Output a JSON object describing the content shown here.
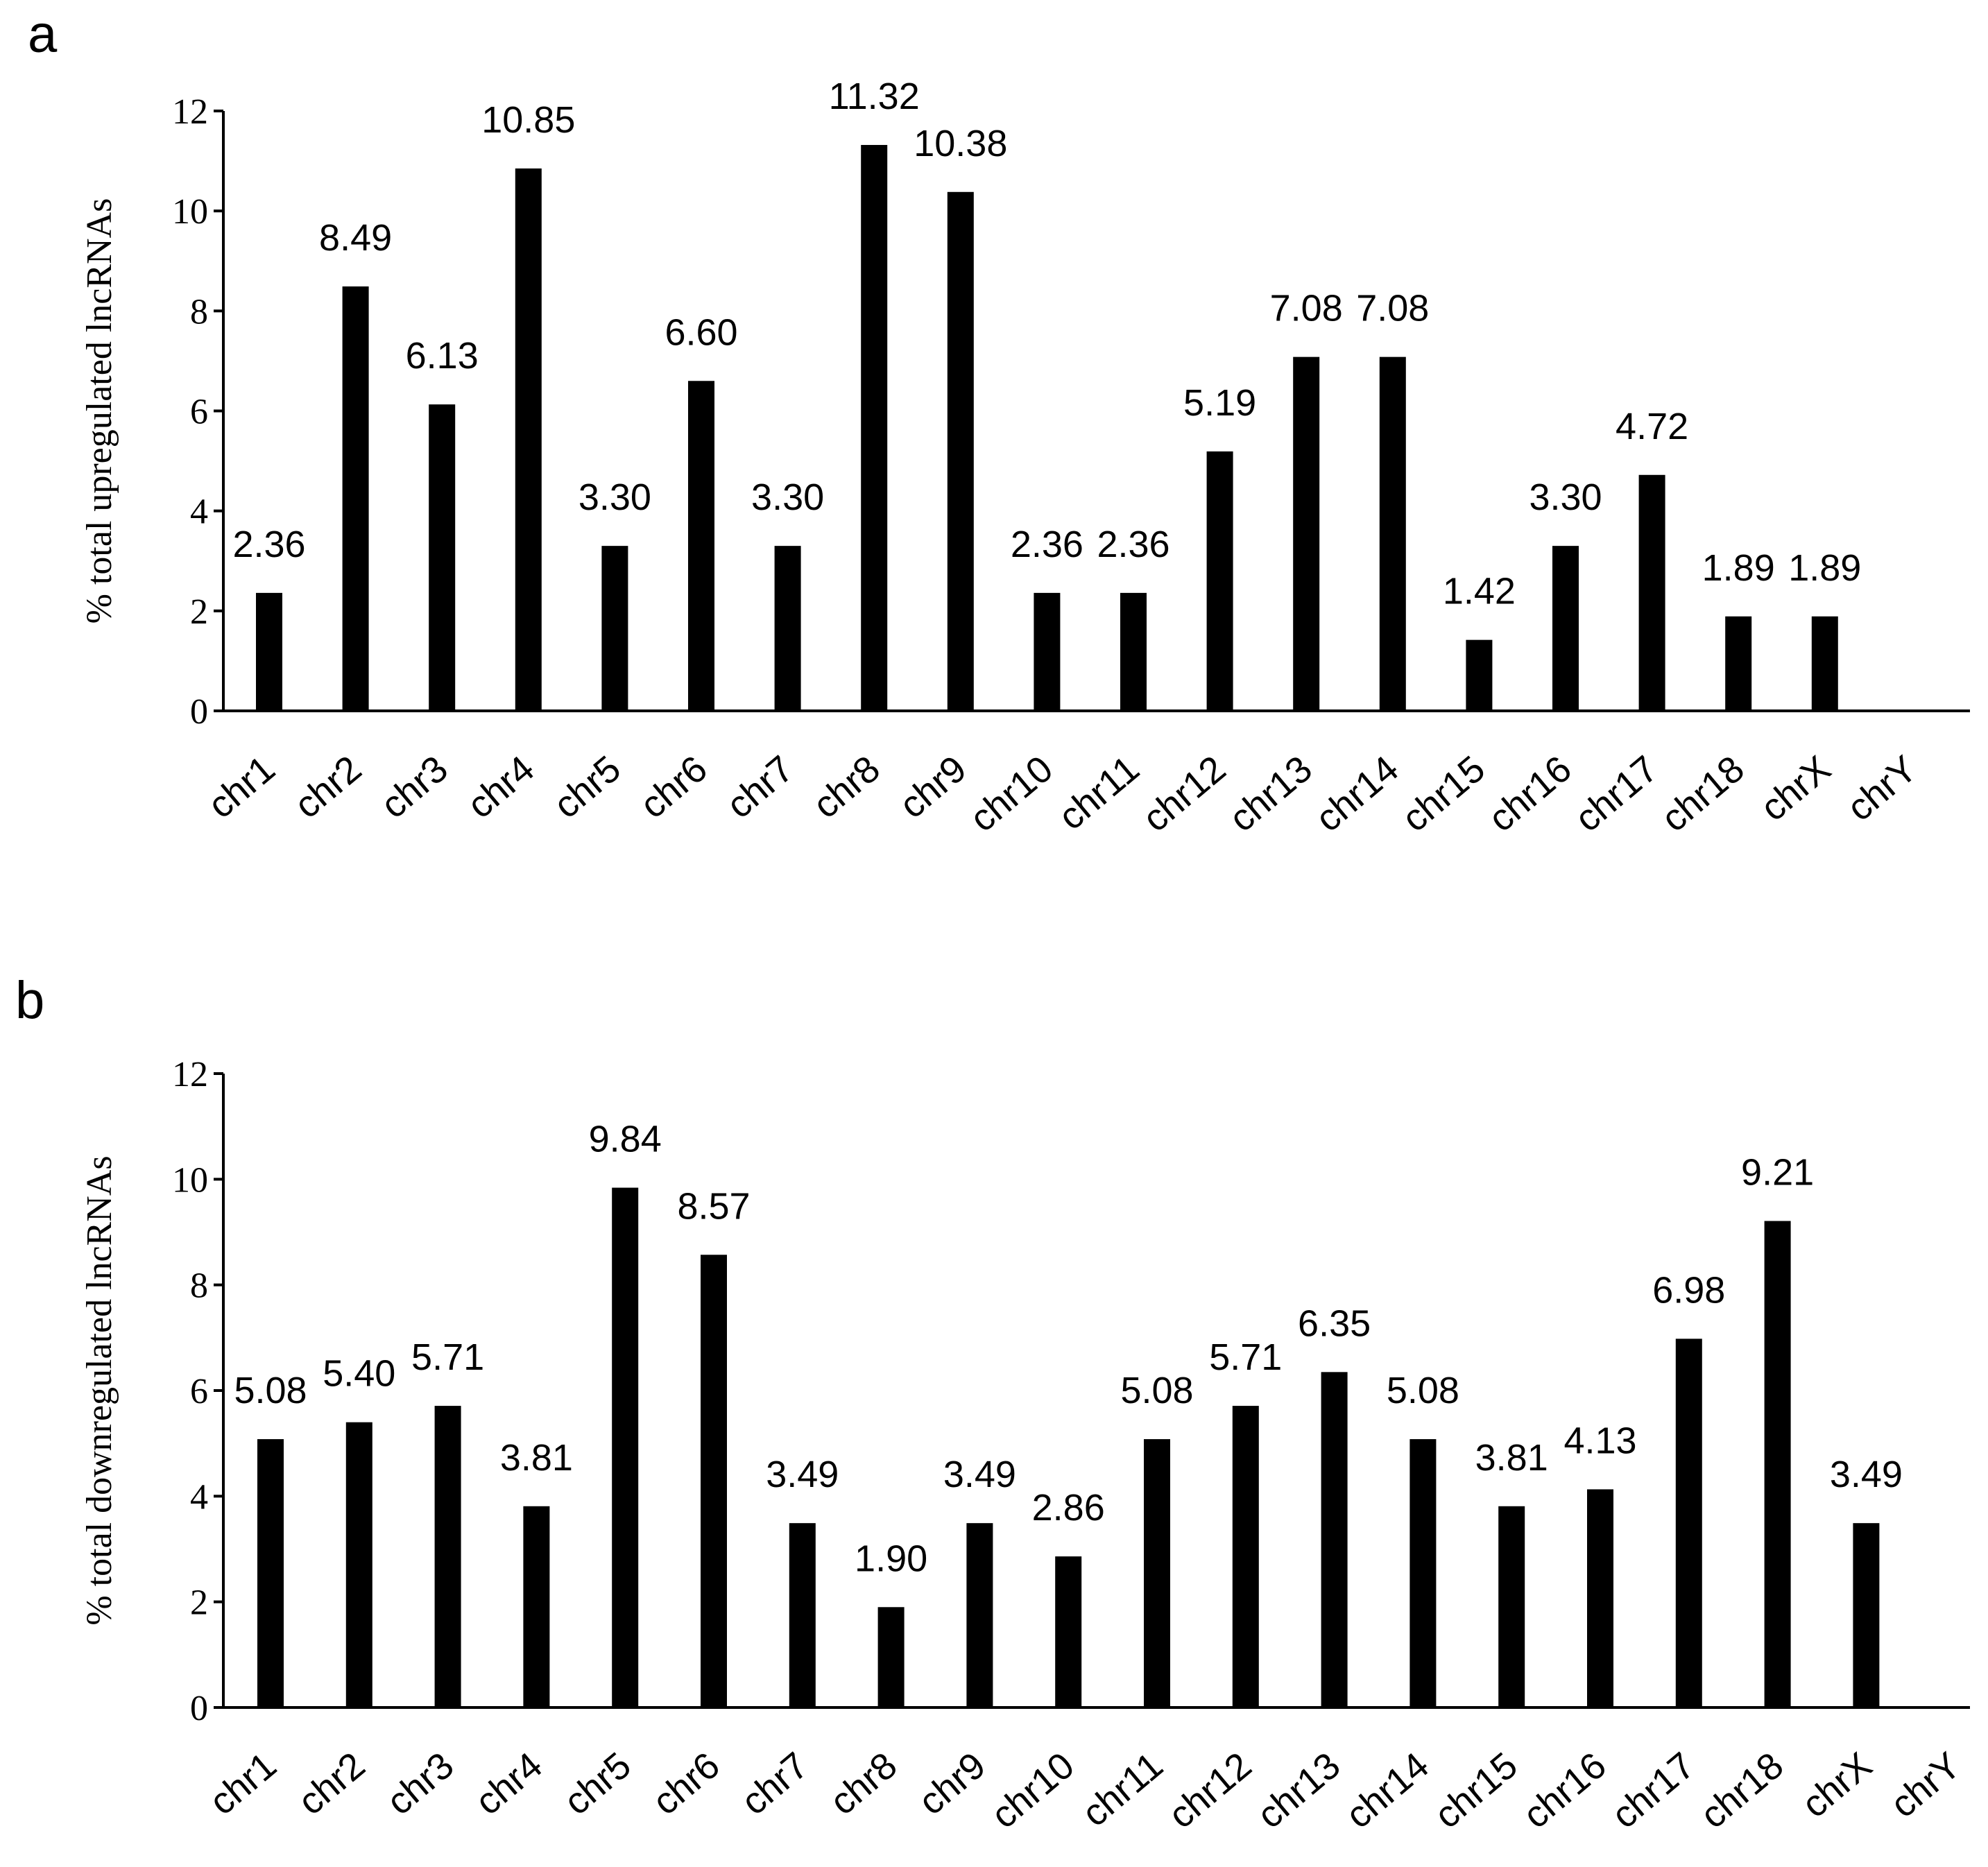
{
  "chart_data": [
    {
      "type": "bar",
      "panel": "a",
      "ylabel": "% total upregulated lncRNAs",
      "xlabel": "",
      "ylim": [
        0,
        12
      ],
      "yticks": [
        "0",
        "2",
        "4",
        "6",
        "8",
        "10",
        "12"
      ],
      "categories": [
        "chr1",
        "chr2",
        "chr3",
        "chr4",
        "chr5",
        "chr6",
        "chr7",
        "chr8",
        "chr9",
        "chr10",
        "chr11",
        "chr12",
        "chr13",
        "chr14",
        "chr15",
        "chr16",
        "chr17",
        "chr18",
        "chrX",
        "chrY"
      ],
      "values": [
        2.36,
        8.49,
        6.13,
        10.85,
        3.3,
        6.6,
        3.3,
        11.32,
        10.38,
        2.36,
        2.36,
        5.19,
        7.08,
        7.08,
        1.42,
        3.3,
        4.72,
        1.89,
        1.89,
        null
      ],
      "labels": [
        "2.36",
        "8.49",
        "6.13",
        "10.85",
        "3.30",
        "6.60",
        "3.30",
        "11.32",
        "10.38",
        "2.36",
        "2.36",
        "5.19",
        "7.08",
        "7.08",
        "1.42",
        "3.30",
        "4.72",
        "1.89",
        "1.89",
        ""
      ]
    },
    {
      "type": "bar",
      "panel": "b",
      "ylabel": "% total downregulated lncRNAs",
      "xlabel": "",
      "ylim": [
        0,
        12
      ],
      "yticks": [
        "0",
        "2",
        "4",
        "6",
        "8",
        "10",
        "12"
      ],
      "categories": [
        "chr1",
        "chr2",
        "chr3",
        "chr4",
        "chr5",
        "chr6",
        "chr7",
        "chr8",
        "chr9",
        "chr10",
        "chr11",
        "chr12",
        "chr13",
        "chr14",
        "chr15",
        "chr16",
        "chr17",
        "chr18",
        "chrX",
        "chrY"
      ],
      "values": [
        5.08,
        5.4,
        5.71,
        3.81,
        9.84,
        8.57,
        3.49,
        1.9,
        3.49,
        2.86,
        5.08,
        5.71,
        6.35,
        5.08,
        3.81,
        4.13,
        6.98,
        9.21,
        3.49,
        null
      ],
      "labels": [
        "5.08",
        "5.40",
        "5.71",
        "3.81",
        "9.84",
        "8.57",
        "3.49",
        "1.90",
        "3.49",
        "2.86",
        "5.08",
        "5.71",
        "6.35",
        "5.08",
        "3.81",
        "4.13",
        "6.98",
        "9.21",
        "3.49",
        ""
      ]
    }
  ]
}
